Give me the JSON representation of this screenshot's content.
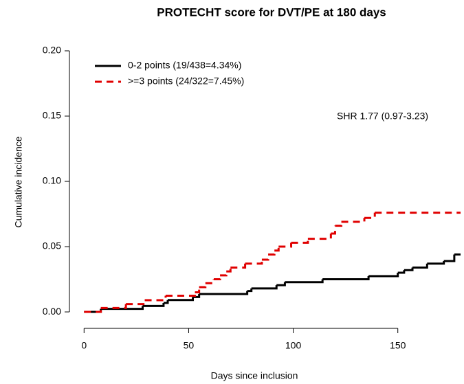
{
  "chart_data": {
    "type": "step",
    "title": "PROTECHT score for DVT/PE at 180 days",
    "x_label": "Days since inclusion",
    "y_label": "Cumulative incidence",
    "annotation": "SHR 1.77 (0.97-3.23)",
    "xlim": [
      -7,
      180
    ],
    "ylim": [
      -0.0126,
      0.2
    ],
    "xticks": [
      0,
      50,
      100,
      150
    ],
    "yticks": [
      {
        "value": 0,
        "label": "0.00"
      },
      {
        "value": 0.05,
        "label": "0.05"
      },
      {
        "value": 0.1,
        "label": "0.10"
      },
      {
        "value": 0.15,
        "label": "0.15"
      },
      {
        "value": 0.2,
        "label": "0.20"
      }
    ],
    "series": [
      {
        "name": "0-2 points (19/438=4.34%)",
        "color": "#000000",
        "dashed": false,
        "x": [
          0,
          8,
          28,
          38,
          40,
          52,
          55,
          78,
          80,
          92,
          96,
          114,
          136,
          150,
          153,
          157,
          164,
          172,
          177,
          180
        ],
        "values": [
          0,
          0.0023,
          0.0046,
          0.0069,
          0.0091,
          0.0114,
          0.0137,
          0.016,
          0.018,
          0.0205,
          0.0228,
          0.025,
          0.0274,
          0.03,
          0.032,
          0.034,
          0.037,
          0.039,
          0.044,
          0.044
        ]
      },
      {
        "name": ">=3 points (24/322=7.45%)",
        "color": "#e00000",
        "dashed": true,
        "x": [
          0,
          8,
          20,
          29,
          39,
          53,
          55,
          58,
          62,
          65,
          68,
          70,
          77,
          85,
          88,
          91,
          93,
          99,
          107,
          118,
          120,
          123,
          134,
          139,
          180
        ],
        "values": [
          0,
          0.003,
          0.006,
          0.009,
          0.0124,
          0.015,
          0.019,
          0.022,
          0.025,
          0.028,
          0.031,
          0.034,
          0.037,
          0.04,
          0.044,
          0.047,
          0.05,
          0.053,
          0.056,
          0.06,
          0.066,
          0.069,
          0.072,
          0.076,
          0.076
        ]
      }
    ]
  }
}
